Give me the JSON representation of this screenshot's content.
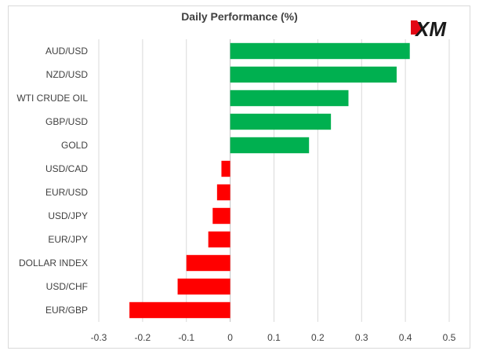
{
  "chart_data": {
    "type": "bar",
    "orientation": "horizontal",
    "title": "Daily Performance (%)",
    "categories": [
      "AUD/USD",
      "NZD/USD",
      "WTI CRUDE OIL",
      "GBP/USD",
      "GOLD",
      "USD/CAD",
      "EUR/USD",
      "USD/JPY",
      "EUR/JPY",
      "DOLLAR INDEX",
      "USD/CHF",
      "EUR/GBP"
    ],
    "values": [
      0.41,
      0.38,
      0.27,
      0.23,
      0.18,
      -0.02,
      -0.03,
      -0.04,
      -0.05,
      -0.1,
      -0.12,
      -0.23
    ],
    "xlim": [
      -0.3,
      0.5
    ],
    "xticks": [
      "-0.3",
      "-0.2",
      "-0.1",
      "0",
      "0.1",
      "0.2",
      "0.3",
      "0.4",
      "0.5"
    ],
    "xtick_values": [
      -0.3,
      -0.2,
      -0.1,
      0,
      0.1,
      0.2,
      0.3,
      0.4,
      0.5
    ],
    "grid": "vertical",
    "colors": {
      "positive": "#00b050",
      "negative": "#ff0000",
      "grid": "#d9d9d9",
      "axis": "#bfbfbf"
    }
  },
  "logo": {
    "text": "XM",
    "color": "#1a1a1a",
    "accent": "#e30613"
  }
}
